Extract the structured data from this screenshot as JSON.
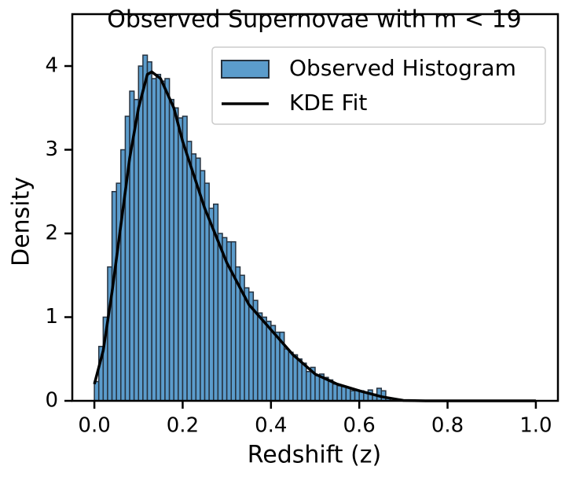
{
  "chart_data": {
    "type": "histogram",
    "title": "Observed Supernovae with m < 19",
    "x_label": "Redshift (z)",
    "y_label": "Density",
    "xlim": [
      -0.05,
      1.05
    ],
    "ylim": [
      0,
      4.62
    ],
    "xticks": [
      {
        "value": 0,
        "label": "0.0"
      },
      {
        "value": 0.2,
        "label": "0.2"
      },
      {
        "value": 0.4,
        "label": "0.4"
      },
      {
        "value": 0.6,
        "label": "0.6"
      },
      {
        "value": 0.8,
        "label": "0.8"
      },
      {
        "value": 1,
        "label": "1.0"
      }
    ],
    "yticks": [
      0,
      1,
      2,
      3,
      4
    ],
    "legend": "upper right",
    "series": [
      {
        "name": "Observed Histogram",
        "type": "histogram",
        "color": "#5b9ccc",
        "edgecolor": "#26323f",
        "bins": [
          0,
          0.01,
          0.02,
          0.03,
          0.04,
          0.05,
          0.06,
          0.07,
          0.08,
          0.09,
          0.1,
          0.11,
          0.12,
          0.13,
          0.14,
          0.15,
          0.16,
          0.17,
          0.18,
          0.19,
          0.2,
          0.21,
          0.22,
          0.23,
          0.24,
          0.25,
          0.26,
          0.27,
          0.28,
          0.29,
          0.3,
          0.31,
          0.32,
          0.33,
          0.34,
          0.35,
          0.36,
          0.37,
          0.38,
          0.39,
          0.4,
          0.41,
          0.42,
          0.43,
          0.44,
          0.45,
          0.46,
          0.47,
          0.48,
          0.49,
          0.5,
          0.51,
          0.52,
          0.53,
          0.54,
          0.55,
          0.56,
          0.57,
          0.58,
          0.59,
          0.6,
          0.61,
          0.62,
          0.63,
          0.64,
          0.65,
          0.66,
          0.67
        ],
        "values": [
          0.23,
          0.65,
          1.0,
          1.6,
          2.5,
          2.6,
          3.0,
          3.4,
          3.7,
          3.6,
          4.0,
          4.13,
          4.05,
          3.85,
          3.9,
          3.82,
          3.85,
          3.6,
          3.5,
          3.38,
          3.4,
          3.1,
          2.95,
          2.9,
          2.75,
          2.6,
          2.3,
          2.35,
          2.0,
          1.95,
          1.9,
          1.9,
          1.6,
          1.5,
          1.35,
          1.3,
          1.2,
          1.05,
          1.0,
          0.95,
          0.9,
          0.82,
          0.82,
          0.62,
          0.58,
          0.55,
          0.5,
          0.45,
          0.35,
          0.4,
          0.3,
          0.32,
          0.28,
          0.25,
          0.2,
          0.18,
          0.17,
          0.16,
          0.12,
          0.13,
          0.12,
          0.1,
          0.13,
          0.08,
          0.15,
          0.12,
          0.03
        ]
      },
      {
        "name": "KDE Fit",
        "type": "line",
        "color": "#000000",
        "x": [
          0,
          0.02,
          0.04,
          0.06,
          0.08,
          0.1,
          0.12,
          0.13,
          0.15,
          0.18,
          0.2,
          0.25,
          0.3,
          0.35,
          0.4,
          0.45,
          0.5,
          0.55,
          0.6,
          0.65,
          0.7,
          0.75,
          0.8,
          0.9,
          1.0
        ],
        "values": [
          0.2,
          0.6,
          1.3,
          2.1,
          2.9,
          3.5,
          3.9,
          3.93,
          3.85,
          3.5,
          3.1,
          2.3,
          1.65,
          1.15,
          0.85,
          0.55,
          0.32,
          0.2,
          0.12,
          0.05,
          0.005,
          0,
          0,
          0,
          0
        ]
      }
    ]
  }
}
